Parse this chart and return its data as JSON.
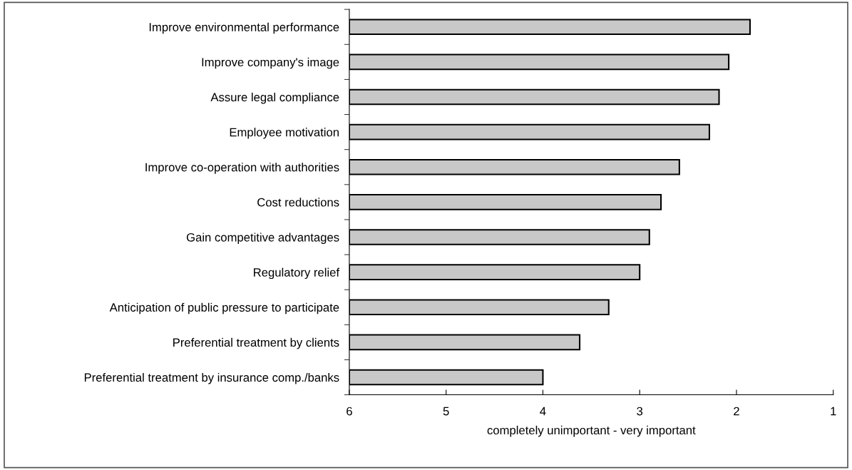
{
  "chart_data": {
    "type": "bar",
    "orientation": "horizontal",
    "xlabel": "completely unimportant - very important",
    "categories": [
      "Improve environmental performance",
      "Improve company's image",
      "Assure legal compliance",
      "Employee motivation",
      "Improve co-operation with authorities",
      "Cost reductions",
      "Gain competitive advantages",
      "Regulatory relief",
      "Anticipation of public pressure to participate",
      "Preferential treatment by clients",
      "Preferential treatment by insurance comp./banks"
    ],
    "values": [
      -4.14,
      -3.92,
      -3.82,
      -3.72,
      -3.41,
      -3.22,
      -3.1,
      -3.0,
      -2.68,
      -2.38,
      -2.0
    ],
    "base": [
      6,
      6,
      6,
      6,
      6,
      6,
      6,
      6,
      6,
      6,
      6
    ],
    "color": "#c8c8c8",
    "xlim": [
      6,
      1
    ],
    "xticks": [
      6,
      5,
      4,
      3,
      2,
      1
    ],
    "grid": false,
    "legend": false
  }
}
